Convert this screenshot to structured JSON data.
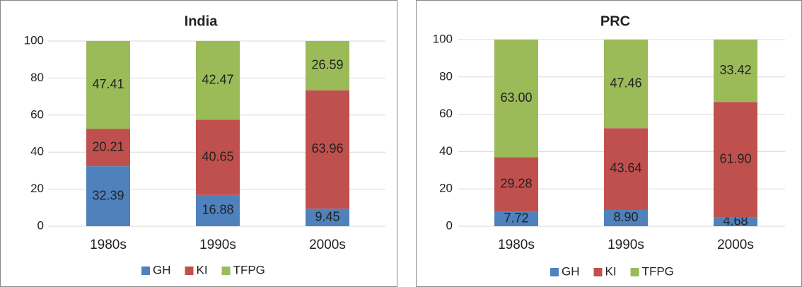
{
  "chart_data": [
    {
      "type": "stacked-bar",
      "title": "India",
      "categories": [
        "1980s",
        "1990s",
        "2000s"
      ],
      "series": [
        {
          "name": "GH",
          "color": "#4f81bd",
          "values": [
            32.39,
            16.88,
            9.45
          ]
        },
        {
          "name": "KI",
          "color": "#c0504d",
          "values": [
            20.21,
            40.65,
            63.96
          ]
        },
        {
          "name": "TFPG",
          "color": "#9bbb59",
          "values": [
            47.41,
            42.47,
            26.59
          ]
        }
      ],
      "ylim": [
        0,
        100
      ],
      "yticks": [
        0,
        20,
        40,
        60,
        80,
        100
      ],
      "grid": true,
      "legend": "bottom"
    },
    {
      "type": "stacked-bar",
      "title": "PRC",
      "categories": [
        "1980s",
        "1990s",
        "2000s"
      ],
      "series": [
        {
          "name": "GH",
          "color": "#4f81bd",
          "values": [
            7.72,
            8.9,
            4.68
          ],
          "value_labels": [
            "7.72",
            "8.90",
            "4.68"
          ]
        },
        {
          "name": "KI",
          "color": "#c0504d",
          "values": [
            29.28,
            43.64,
            61.9
          ],
          "value_labels": [
            "29.28",
            "43.64",
            "61.90"
          ]
        },
        {
          "name": "TFPG",
          "color": "#9bbb59",
          "values": [
            63,
            47.46,
            33.42
          ],
          "value_labels": [
            "63.00",
            "47.46",
            "33.42"
          ]
        }
      ],
      "ylim": [
        0,
        100
      ],
      "yticks": [
        0,
        20,
        40,
        60,
        80,
        100
      ],
      "grid": true,
      "legend": "bottom"
    }
  ]
}
